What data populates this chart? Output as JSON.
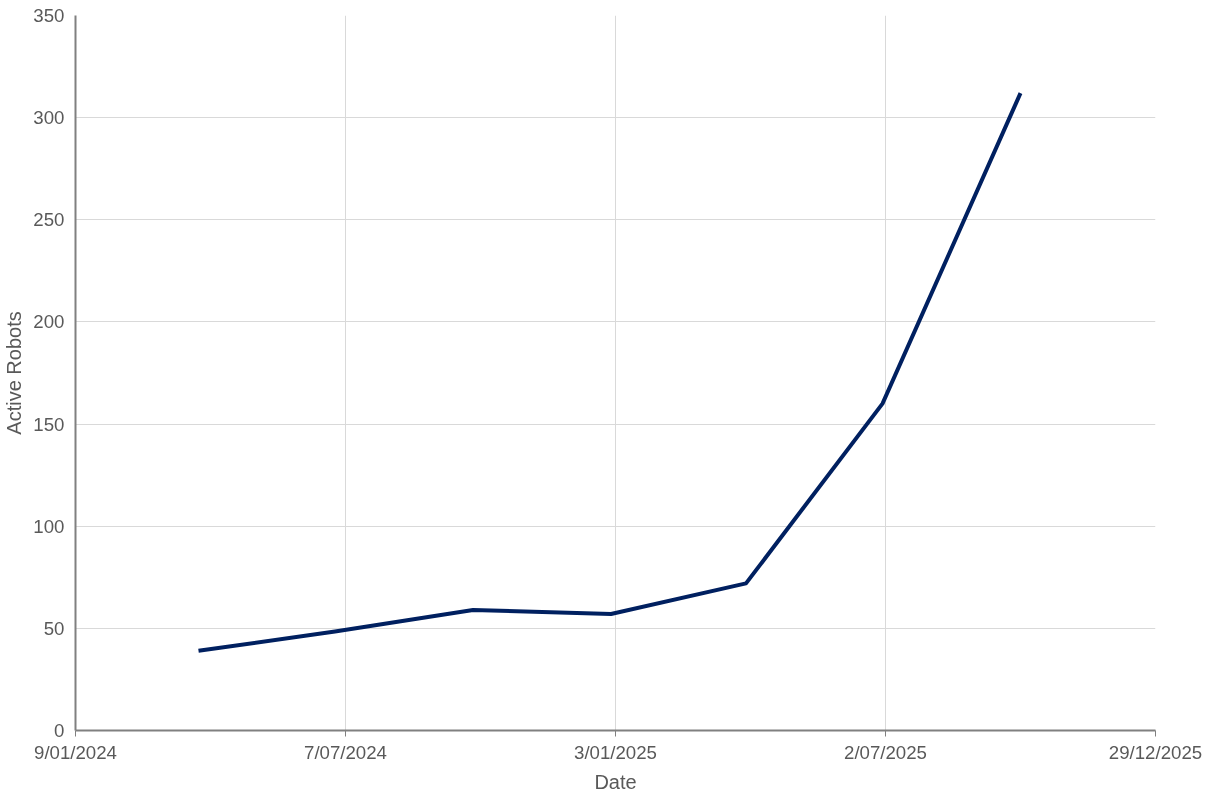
{
  "chart_data": {
    "type": "line",
    "xlabel": "Date",
    "ylabel": "Active Robots",
    "x": [
      "2024-03-31",
      "2024-06-30",
      "2024-09-30",
      "2024-12-31",
      "2025-03-31",
      "2025-06-30",
      "2025-09-30"
    ],
    "series": [
      {
        "color": "#002060",
        "values": [
          39,
          48.5,
          59,
          57,
          72,
          160,
          312
        ]
      }
    ],
    "xlim": [
      "2024-01-09",
      "2025-12-29"
    ],
    "xticks": [
      {
        "value": "2024-01-09",
        "label": "9/01/2024"
      },
      {
        "value": "2024-07-07",
        "label": "7/07/2024"
      },
      {
        "value": "2025-01-03",
        "label": "3/01/2025"
      },
      {
        "value": "2025-07-02",
        "label": "2/07/2025"
      },
      {
        "value": "2025-12-29",
        "label": "29/12/2025"
      }
    ],
    "ylim": [
      0,
      350
    ],
    "yticks": [
      0,
      50,
      100,
      150,
      200,
      250,
      300,
      350
    ],
    "grid": true,
    "marker": "none",
    "line_style": "solid"
  }
}
